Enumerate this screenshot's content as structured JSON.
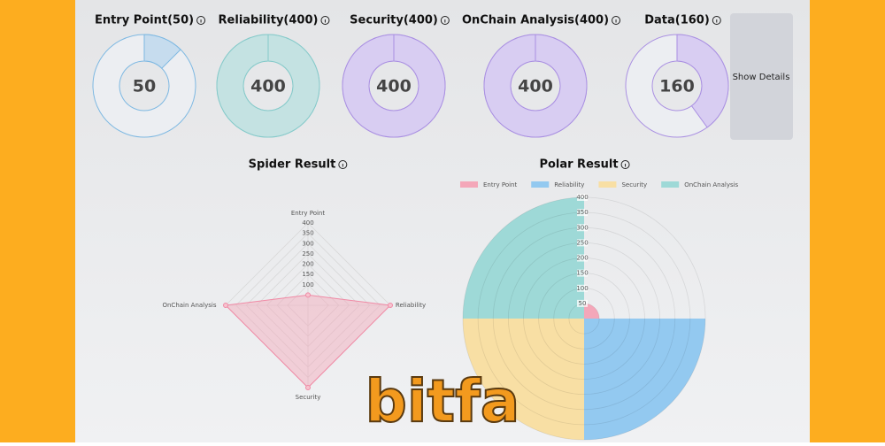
{
  "chart_data": [
    {
      "type": "doughnut",
      "title": "Entry Point(50)",
      "value": 50,
      "max": 400,
      "color": "#c6dcee",
      "stroke": "#7db8e2"
    },
    {
      "type": "doughnut",
      "title": "Reliability(400)",
      "value": 400,
      "max": 400,
      "color": "#c4e2e2",
      "stroke": "#86caca"
    },
    {
      "type": "doughnut",
      "title": "Security(400)",
      "value": 400,
      "max": 400,
      "color": "#d8cdf2",
      "stroke": "#aa90e2"
    },
    {
      "type": "doughnut",
      "title": "OnChain Analysis(400)",
      "value": 400,
      "max": 400,
      "color": "#d8cdf2",
      "stroke": "#aa90e2"
    },
    {
      "type": "doughnut",
      "title": "Data(160)",
      "value": 160,
      "max": 400,
      "color": "#d8cdf2",
      "stroke": "#aa90e2"
    },
    {
      "type": "radar",
      "title": "Spider Result",
      "categories": [
        "Entry Point",
        "Reliability",
        "Security",
        "OnChain Analysis"
      ],
      "values": [
        50,
        400,
        400,
        400
      ],
      "color": "#f08aa5",
      "rlim": [
        0,
        400
      ],
      "rticks": [
        100,
        150,
        200,
        250,
        300,
        350,
        400
      ]
    },
    {
      "type": "polarArea",
      "title": "Polar Result",
      "categories": [
        "Entry Point",
        "Reliability",
        "Security",
        "OnChain Analysis"
      ],
      "values": [
        50,
        400,
        400,
        400
      ],
      "colors": [
        "#f4a7b9",
        "#93c9f0",
        "#f8dfa4",
        "#9ed9d7"
      ],
      "rlim": [
        0,
        400
      ],
      "rticks": [
        50,
        100,
        150,
        200,
        250,
        300,
        350,
        400
      ]
    }
  ],
  "button": "Show Details",
  "logo": "bitfa"
}
